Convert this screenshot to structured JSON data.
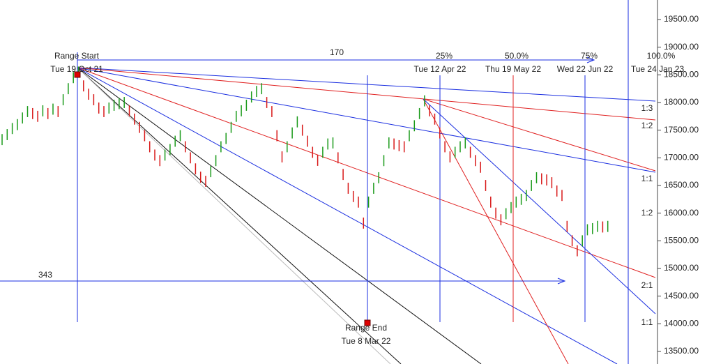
{
  "chart_data": {
    "type": "ohlc",
    "ylim": [
      13273,
      19853
    ],
    "yticks": [
      {
        "value": 13500,
        "label": "13500.00"
      },
      {
        "value": 14000,
        "label": "14000.00"
      },
      {
        "value": 14500,
        "label": "14500.00"
      },
      {
        "value": 15000,
        "label": "15000.00"
      },
      {
        "value": 15500,
        "label": "15500.00"
      },
      {
        "value": 16000,
        "label": "16000.00"
      },
      {
        "value": 16500,
        "label": "16500.00"
      },
      {
        "value": 17000,
        "label": "17000.00"
      },
      {
        "value": 17500,
        "label": "17500.00"
      },
      {
        "value": 18000,
        "label": "18000.00"
      },
      {
        "value": 18500,
        "label": "18500.00"
      },
      {
        "value": 19000,
        "label": "19000.00"
      },
      {
        "value": 19500,
        "label": "19500.00"
      }
    ],
    "up_color": "#1a9a1a",
    "down_color": "#d81818",
    "high": [
      17430,
      17520,
      17630,
      17700,
      17820,
      17936,
      17900,
      17850,
      17950,
      17900,
      17980,
      17936,
      18150,
      18350,
      18550,
      18650,
      18400,
      18250,
      18150,
      18000,
      17936,
      18000,
      18050,
      18080,
      18100,
      17950,
      17800,
      17650,
      17500,
      17300,
      17150,
      17050,
      17150,
      17250,
      17400,
      17500,
      17300,
      17100,
      16900,
      16750,
      16675,
      16850,
      17050,
      17300,
      17450,
      17650,
      17850,
      17950,
      18050,
      18200,
      18300,
      18350,
      18100,
      17936,
      17500,
      17117,
      17300,
      17550,
      17750,
      17600,
      17400,
      17200,
      17054,
      17200,
      17350,
      17369,
      17100,
      16800,
      16550,
      16400,
      16300,
      15920,
      16300,
      16550,
      16740,
      17050,
      17370,
      17350,
      17320,
      17300,
      17500,
      17680,
      17900,
      18130,
      17950,
      17800,
      17550,
      17300,
      17117,
      17200,
      17300,
      17370,
      17200,
      17050,
      16930,
      16600,
      16300,
      16100,
      15980,
      16090,
      16200,
      16300,
      16350,
      16420,
      16600,
      16740,
      16720,
      16700,
      16650,
      16500,
      16420,
      15860,
      15600,
      15420,
      15600,
      15800,
      15820,
      15860,
      15850,
      15860
    ],
    "low": [
      17230,
      17320,
      17430,
      17500,
      17620,
      17736,
      17700,
      17650,
      17750,
      17700,
      17780,
      17736,
      17950,
      18150,
      18350,
      18450,
      18200,
      18050,
      17950,
      17800,
      17736,
      17800,
      17850,
      17880,
      17900,
      17750,
      17600,
      17450,
      17300,
      17100,
      16950,
      16850,
      16950,
      17050,
      17200,
      17300,
      17100,
      16900,
      16700,
      16550,
      16475,
      16650,
      16850,
      17100,
      17250,
      17450,
      17650,
      17750,
      17850,
      18000,
      18100,
      18150,
      17900,
      17736,
      17300,
      16917,
      17100,
      17350,
      17550,
      17400,
      17200,
      17000,
      16854,
      17000,
      17150,
      17169,
      16900,
      16600,
      16350,
      16200,
      16100,
      15720,
      16100,
      16350,
      16540,
      16850,
      17170,
      17150,
      17120,
      17100,
      17300,
      17480,
      17700,
      17930,
      17750,
      17600,
      17350,
      17100,
      16917,
      17000,
      17100,
      17170,
      17000,
      16850,
      16730,
      16400,
      16100,
      15900,
      15780,
      15890,
      16000,
      16100,
      16150,
      16220,
      16400,
      16540,
      16520,
      16500,
      16450,
      16300,
      16220,
      15660,
      15400,
      15220,
      15400,
      15600,
      15620,
      15660,
      15650,
      15660
    ],
    "annotations": {
      "range_start": "Range Start",
      "range_start_date": "Tue 19 Oct 21",
      "range_end": "Range End",
      "range_end_date": "Tue 8 Mar 22",
      "bars_count": "170",
      "price_count": "343",
      "p25": "25%",
      "p25_date": "Tue 12 Apr 22",
      "p50": "50.0%",
      "p50_date": "Thu 19 May 22",
      "p75": "75%",
      "p75_date": "Wed 22 Jun 22",
      "p100": "100.0%",
      "p100_date": "Tue 24 Jan 23",
      "fan_1_3": "1:3",
      "fan_1_2_a": "1:2",
      "fan_1_1_a": "1:1",
      "fan_1_2_b": "1:2",
      "fan_2_1": "2:1",
      "fan_1_1_b": "1:1"
    }
  }
}
